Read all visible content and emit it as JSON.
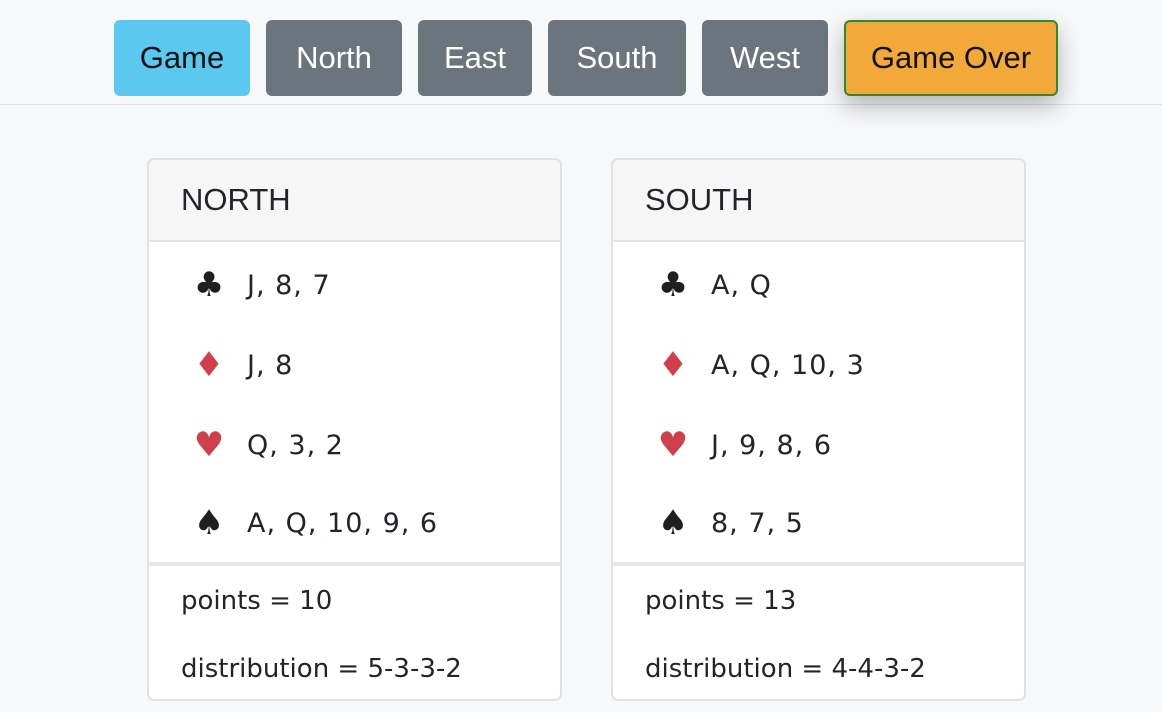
{
  "nav": {
    "game": "Game",
    "north": "North",
    "east": "East",
    "south": "South",
    "west": "West",
    "game_over": "Game Over"
  },
  "colors": {
    "game_button": "#5bc9ef",
    "seat_button": "#6c757d",
    "game_over_button": "#f3a93a",
    "red_suit": "#d0404a",
    "black_suit": "#1d1f21"
  },
  "icons": {
    "clubs": "♣",
    "diamonds": "♦",
    "hearts": "♥",
    "spades": "♠"
  },
  "hands": [
    {
      "seat": "NORTH",
      "clubs": "J, 8, 7",
      "diamonds": "J, 8",
      "hearts": "Q, 3, 2",
      "spades": "A, Q, 10, 9, 6",
      "points": "points = 10",
      "distribution": "distribution = 5-3-3-2"
    },
    {
      "seat": "SOUTH",
      "clubs": "A, Q",
      "diamonds": "A, Q, 10, 3",
      "hearts": "J, 9, 8, 6",
      "spades": "8, 7, 5",
      "points": "points = 13",
      "distribution": "distribution = 4-4-3-2"
    }
  ]
}
